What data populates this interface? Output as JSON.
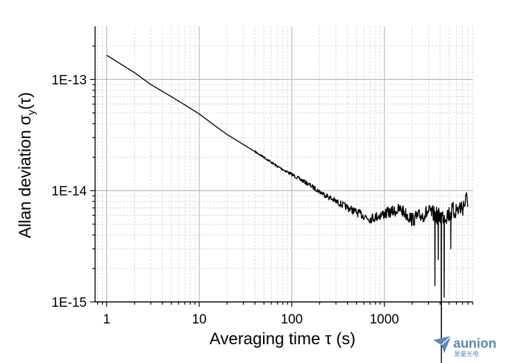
{
  "chart_data": {
    "type": "line",
    "xlabel": "Averaging time  τ  (s)",
    "ylabel_main": "Allan deviation  σ",
    "ylabel_sub": "y",
    "ylabel_tail": "(τ)",
    "x_scale": "log",
    "y_scale": "log",
    "xlim": [
      0.75,
      9000
    ],
    "ylim": [
      1e-15,
      3e-13
    ],
    "x_ticks": [
      1,
      10,
      100,
      1000
    ],
    "x_tick_labels": [
      "1",
      "10",
      "100",
      "1000"
    ],
    "y_ticks": [
      1e-15,
      1e-14,
      1e-13
    ],
    "y_tick_labels": [
      "1E-15",
      "1E-14",
      "1E-13"
    ],
    "grid": true,
    "series": [
      {
        "color": "#000000",
        "x": [
          1,
          2,
          3,
          5,
          7,
          10,
          15,
          20,
          30,
          50,
          70,
          100,
          150,
          200,
          300,
          500,
          700,
          1000,
          1500,
          2000,
          3000,
          4000,
          5000,
          7000,
          8000
        ],
        "y": [
          1.65e-13,
          1.15e-13,
          9e-14,
          7e-14,
          5.9e-14,
          4.9e-14,
          3.8e-14,
          3.2e-14,
          2.6e-14,
          2e-14,
          1.65e-14,
          1.4e-14,
          1.15e-14,
          9.8e-15,
          8e-15,
          6.4e-15,
          5.6e-15,
          6.2e-15,
          6.8e-15,
          5.5e-15,
          6.4e-15,
          5.8e-15,
          6.2e-15,
          7.2e-15,
          8.5e-15
        ],
        "noise_from_x": 40
      }
    ]
  },
  "logo": {
    "name": "aunion",
    "sub": "昊量光电",
    "color": "#5b88b3"
  }
}
